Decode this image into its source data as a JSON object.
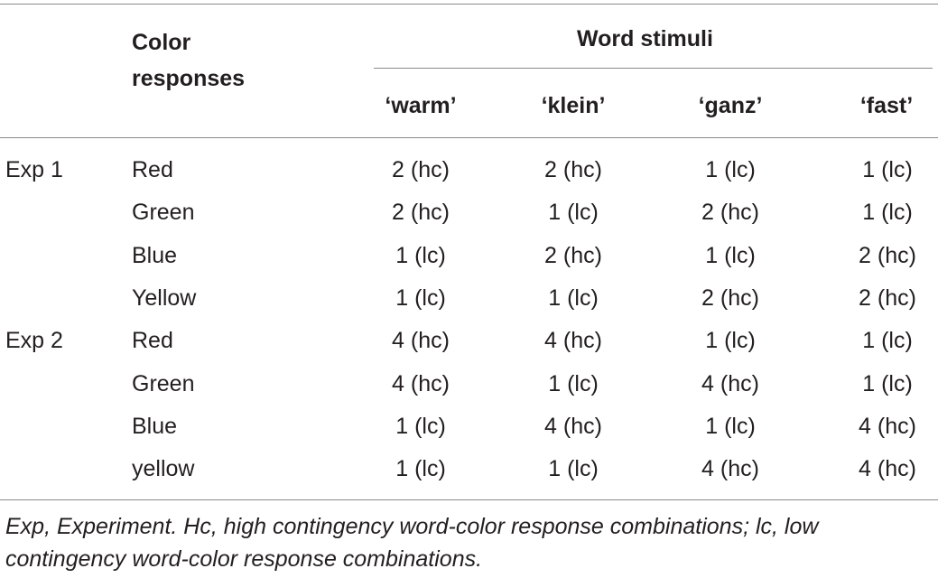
{
  "table": {
    "header": {
      "color_responses": [
        "Color",
        "responses"
      ],
      "word_stimuli": "Word stimuli",
      "columns": [
        "‘warm’",
        "‘klein’",
        "‘ganz’",
        "‘fast’"
      ]
    },
    "rows": [
      {
        "exp": "Exp 1",
        "color": "Red",
        "values": [
          "2 (hc)",
          "2 (hc)",
          "1 (lc)",
          "1 (lc)"
        ]
      },
      {
        "exp": "",
        "color": "Green",
        "values": [
          "2 (hc)",
          "1 (lc)",
          "2 (hc)",
          "1 (lc)"
        ]
      },
      {
        "exp": "",
        "color": "Blue",
        "values": [
          "1 (lc)",
          "2 (hc)",
          "1 (lc)",
          "2 (hc)"
        ]
      },
      {
        "exp": "",
        "color": "Yellow",
        "values": [
          "1 (lc)",
          "1 (lc)",
          "2 (hc)",
          "2 (hc)"
        ]
      },
      {
        "exp": "Exp 2",
        "color": "Red",
        "values": [
          "4 (hc)",
          "4 (hc)",
          "1 (lc)",
          "1 (lc)"
        ]
      },
      {
        "exp": "",
        "color": "Green",
        "values": [
          "4 (hc)",
          "1 (lc)",
          "4 (hc)",
          "1 (lc)"
        ]
      },
      {
        "exp": "",
        "color": "Blue",
        "values": [
          "1 (lc)",
          "4 (hc)",
          "1 (lc)",
          "4 (hc)"
        ]
      },
      {
        "exp": "",
        "color": "yellow",
        "values": [
          "1 (lc)",
          "1 (lc)",
          "4 (hc)",
          "4 (hc)"
        ]
      }
    ]
  },
  "footnote": "Exp, Experiment. Hc, high contingency word-color response combinations; lc, low contingency word-color response combinations."
}
